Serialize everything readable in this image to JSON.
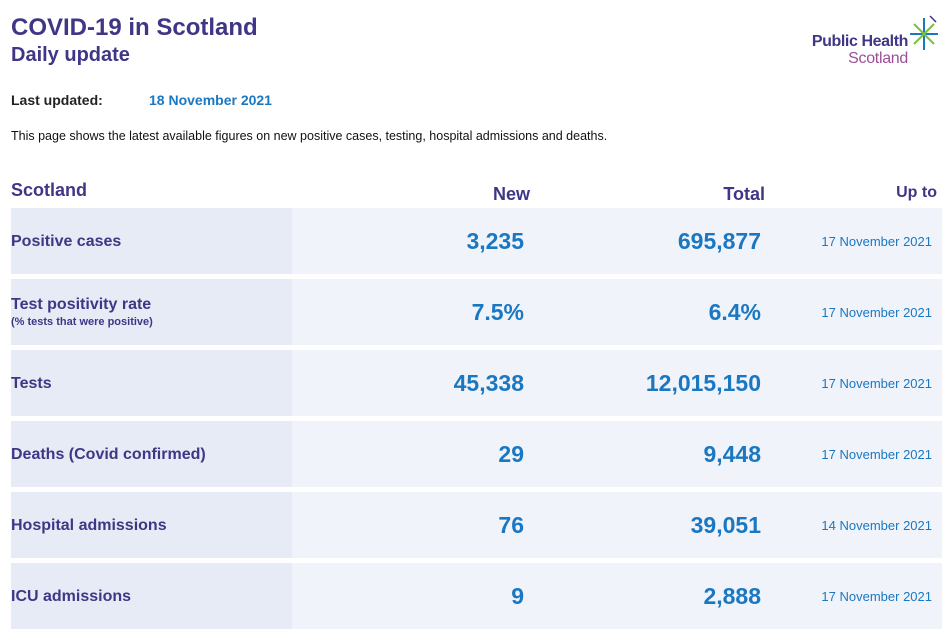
{
  "header": {
    "title": "COVID-19 in Scotland",
    "subtitle": "Daily update"
  },
  "logo": {
    "line1": "Public Health",
    "line2": "Scotland",
    "icon": "star-burst-icon",
    "colors": {
      "primary": "#3f3685",
      "secondary": "#9b4f96",
      "accent_green": "#7ac143",
      "accent_blue": "#1a78c2"
    }
  },
  "updated": {
    "label": "Last updated:",
    "date": "18 November 2021"
  },
  "intro": "This page shows the latest available figures on new positive cases, testing, hospital admissions and deaths.",
  "table": {
    "columns": {
      "region": "Scotland",
      "new": "New",
      "total": "Total",
      "upto": "Up to"
    },
    "rows": [
      {
        "label": "Positive cases",
        "sublabel": "",
        "new": "3,235",
        "total": "695,877",
        "upto": "17 November 2021"
      },
      {
        "label": "Test positivity rate",
        "sublabel": "(% tests that were positive)",
        "new": "7.5%",
        "total": "6.4%",
        "upto": "17 November 2021"
      },
      {
        "label": "Tests",
        "sublabel": "",
        "new": "45,338",
        "total": "12,015,150",
        "upto": "17 November 2021"
      },
      {
        "label": "Deaths (Covid confirmed)",
        "sublabel": "",
        "new": "29",
        "total": "9,448",
        "upto": "17 November 2021"
      },
      {
        "label": "Hospital admissions",
        "sublabel": "",
        "new": "76",
        "total": "39,051",
        "upto": "14 November 2021"
      },
      {
        "label": "ICU admissions",
        "sublabel": "",
        "new": "9",
        "total": "2,888",
        "upto": "17 November 2021"
      }
    ]
  },
  "colors": {
    "heading": "#3f3685",
    "value": "#1a78c2",
    "row_bg": "#f0f3fa",
    "label_bg": "#e6ebf6"
  }
}
